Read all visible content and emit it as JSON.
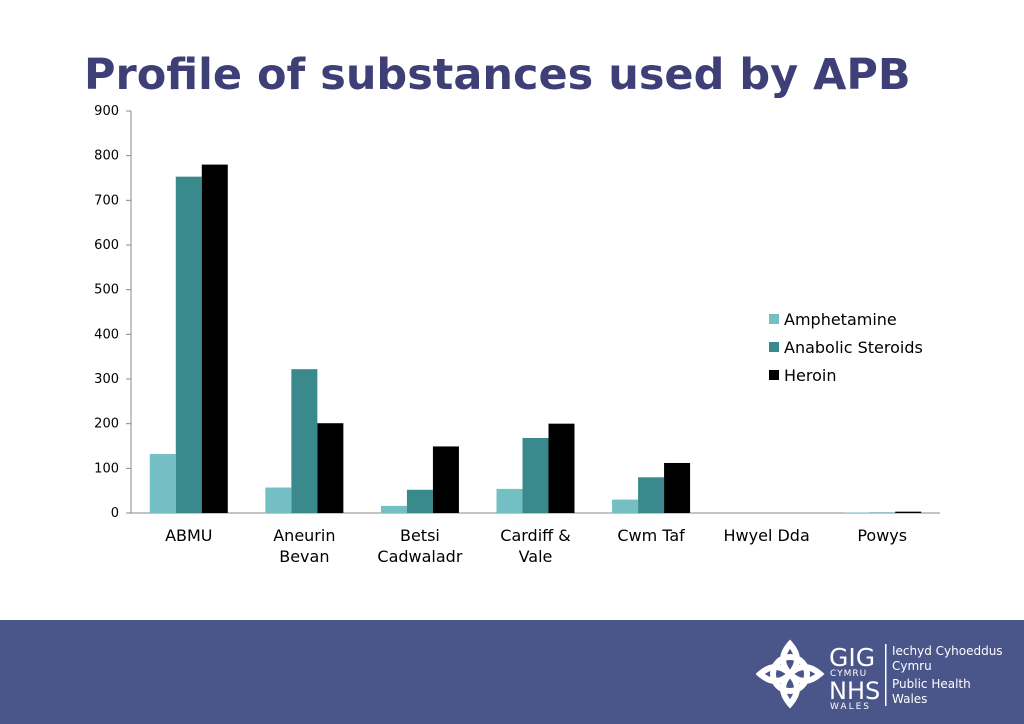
{
  "slide": {
    "title": "Profile of substances used by APB"
  },
  "chart_data": {
    "type": "bar",
    "categories": [
      [
        "ABMU"
      ],
      [
        "Aneurin",
        "Bevan"
      ],
      [
        "Betsi",
        "Cadwaladr"
      ],
      [
        "Cardiff &",
        "Vale"
      ],
      [
        "Cwm Taf"
      ],
      [
        "Hwyel Dda"
      ],
      [
        "Powys"
      ]
    ],
    "series": [
      {
        "name": "Amphetamine",
        "color": "#74bfc4",
        "values": [
          132,
          57,
          16,
          54,
          30,
          0,
          1
        ]
      },
      {
        "name": "Anabolic Steroids",
        "color": "#3a8a8d",
        "values": [
          753,
          322,
          52,
          168,
          80,
          0,
          1
        ]
      },
      {
        "name": "Heroin",
        "color": "#000000",
        "values": [
          780,
          201,
          149,
          200,
          112,
          0,
          3
        ]
      }
    ],
    "ylim": [
      0,
      900
    ],
    "yticks": [
      0,
      100,
      200,
      300,
      400,
      500,
      600,
      700,
      800,
      900
    ],
    "grid": false,
    "legend_position": "right"
  },
  "footer": {
    "color": "#4a5589",
    "logo": {
      "line1": "GIG",
      "line2": "CYMRU",
      "line3": "NHS",
      "line4": "WALES",
      "text1": "Iechyd Cyhoeddus",
      "text2": "Cymru",
      "text3": "Public Health",
      "text4": "Wales"
    }
  }
}
